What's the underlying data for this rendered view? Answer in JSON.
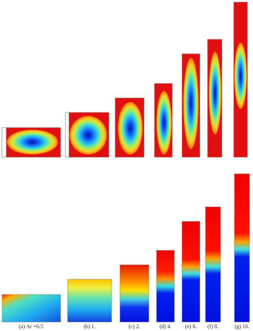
{
  "figure": {
    "captions": [
      "(a) Ar =0.5",
      "(b) 1.",
      "(c) 2.",
      "(d) 4.",
      "(e) 6.",
      "(f) 8.",
      "(g) 10."
    ]
  }
}
